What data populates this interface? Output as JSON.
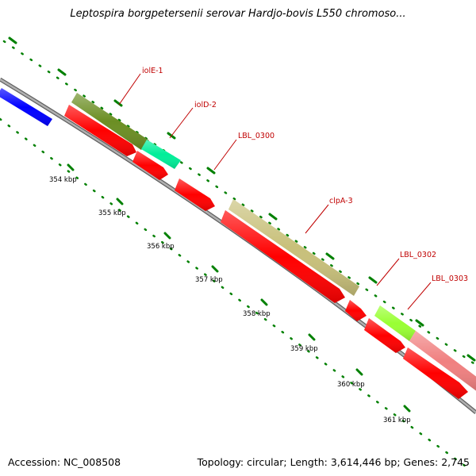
{
  "title": "Leptospira borgpetersenii serovar Hardjo-bovis L550 chromoso...",
  "accession_label": "Accession: NC_008508",
  "topology_label": "Topology: circular; Length: 3,614,446 bp; Genes: 2,745",
  "ticks": [
    "354 kbp",
    "355 kbp",
    "356 kbp",
    "357 kbp",
    "358 kbp",
    "359 kbp",
    "360 kbp",
    "361 kbp"
  ],
  "gene_labels": [
    "iolE-1",
    "iolD-2",
    "LBL_0300",
    "clpA-3",
    "LBL_0302",
    "LBL_0303"
  ],
  "colors": {
    "backbone": "#909090",
    "cds": "#ff0000",
    "iolE-1": "#6b8e23",
    "iolD-2": "#00ee99",
    "clpA-3": "#c8c07a",
    "LBL_0302": "#99ff33",
    "LBL_0303": "#f08080",
    "upstream": "#0000ff",
    "tick": "#008000",
    "label": "#c00000"
  }
}
